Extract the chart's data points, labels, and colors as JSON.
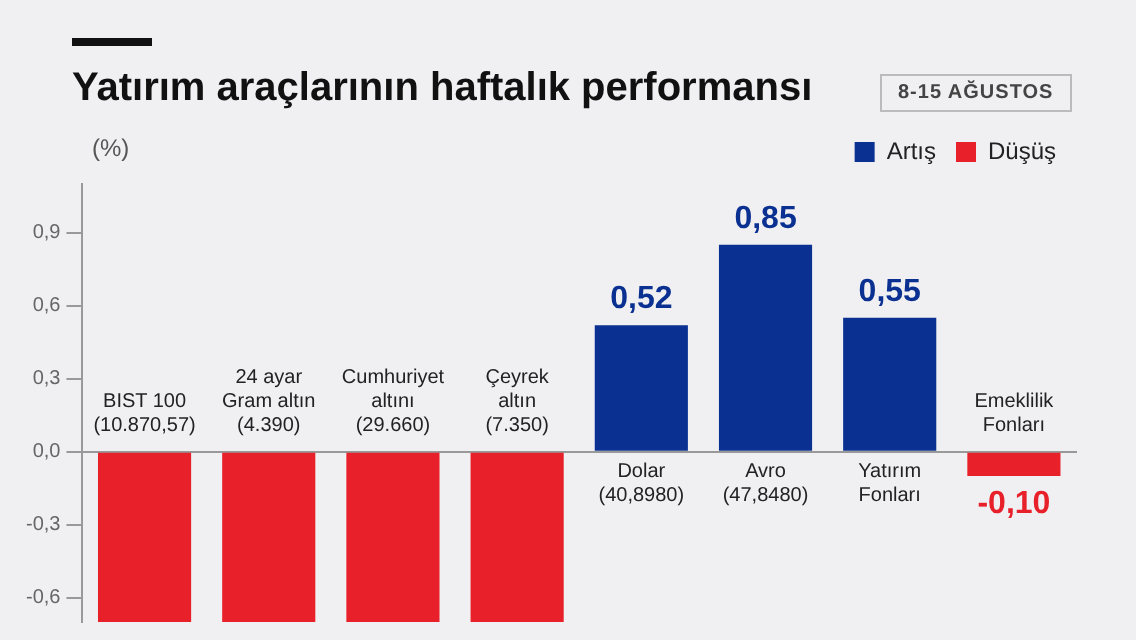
{
  "chart_data": {
    "type": "bar",
    "title": "Yatırım araçlarının haftalık performansı",
    "subtitle": "8-15 AĞUSTOS",
    "ylabel": "(%)",
    "categories": [
      "BIST 100\n(10.870,57)",
      "24 ayar\nGram altın\n(4.390)",
      "Cumhuriyet\naltını\n(29.660)",
      "Çeyrek\naltın\n(7.350)",
      "Dolar\n(40,8980)",
      "Avro\n(47,8480)",
      "Yatırım\nFonları",
      "Emeklilik\nFonları"
    ],
    "series": [
      {
        "name": "Artış",
        "color": "#0a3191",
        "values": [
          null,
          null,
          null,
          null,
          0.52,
          0.85,
          0.55,
          null
        ],
        "value_labels": [
          null,
          null,
          null,
          null,
          "0,52",
          "0,85",
          "0,55",
          null
        ]
      },
      {
        "name": "Düşüş",
        "color": "#e8202a",
        "values": [
          -0.7,
          -0.7,
          -0.7,
          -0.7,
          null,
          null,
          null,
          -0.1
        ],
        "value_labels": [
          null,
          null,
          null,
          null,
          null,
          null,
          null,
          "-0,10"
        ]
      }
    ],
    "ylim": [
      -0.7,
      1.1
    ],
    "yticks": [
      {
        "value": -0.6,
        "label": "-0,6"
      },
      {
        "value": -0.3,
        "label": "-0,3"
      },
      {
        "value": 0,
        "label": "0,0"
      },
      {
        "value": 0.3,
        "label": "0,3"
      },
      {
        "value": 0.6,
        "label": "0,6"
      },
      {
        "value": 0.9,
        "label": "0,9"
      }
    ],
    "grid": false,
    "legend": "top right"
  }
}
